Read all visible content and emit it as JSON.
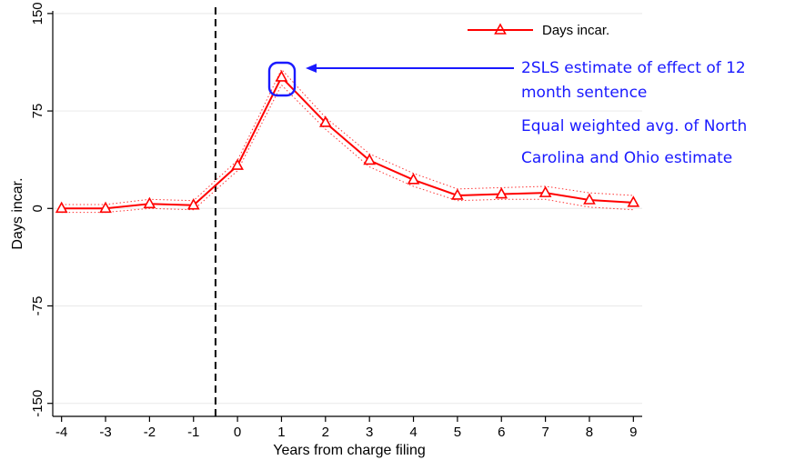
{
  "chart_data": {
    "type": "line",
    "title": "",
    "xlabel": "Years from charge filing",
    "ylabel": "Days incar.",
    "x": [
      -4,
      -3,
      -2,
      -1,
      0,
      1,
      2,
      3,
      4,
      5,
      6,
      7,
      8,
      9
    ],
    "xlim": [
      -4.2,
      9.2
    ],
    "ylim": [
      -160,
      152
    ],
    "xticks": [
      "-4",
      "-3",
      "-2",
      "-1",
      "0",
      "1",
      "2",
      "3",
      "4",
      "5",
      "6",
      "7",
      "8",
      "9"
    ],
    "yticks": [
      "-150",
      "-75",
      "0",
      "75",
      "150"
    ],
    "ytick_values": [
      -150,
      -75,
      0,
      75,
      150
    ],
    "series": [
      {
        "name": "Days incar.",
        "values": [
          0,
          0,
          3.5,
          2.5,
          33,
          101,
          66,
          37,
          22,
          10,
          11,
          12,
          6.5,
          4.5
        ],
        "ci_lower": [
          -3,
          -3,
          0,
          -1,
          29,
          95,
          61,
          32,
          17,
          6,
          7,
          7,
          1,
          -1
        ],
        "ci_upper": [
          3,
          3,
          7,
          6,
          37,
          107,
          70,
          42,
          27,
          15,
          16,
          17,
          12,
          10
        ],
        "color": "#ff0000",
        "marker": "triangle"
      }
    ],
    "event_line_x": -0.5,
    "legend": {
      "position": "top-right",
      "label": "Days incar."
    },
    "annotation": {
      "lines": [
        "2SLS estimate of effect of 12",
        "month sentence",
        "Equal weighted avg.  of North",
        "Carolina and Ohio estimate"
      ],
      "color": "#1a1aff",
      "target_x": 1
    },
    "grid": true
  }
}
